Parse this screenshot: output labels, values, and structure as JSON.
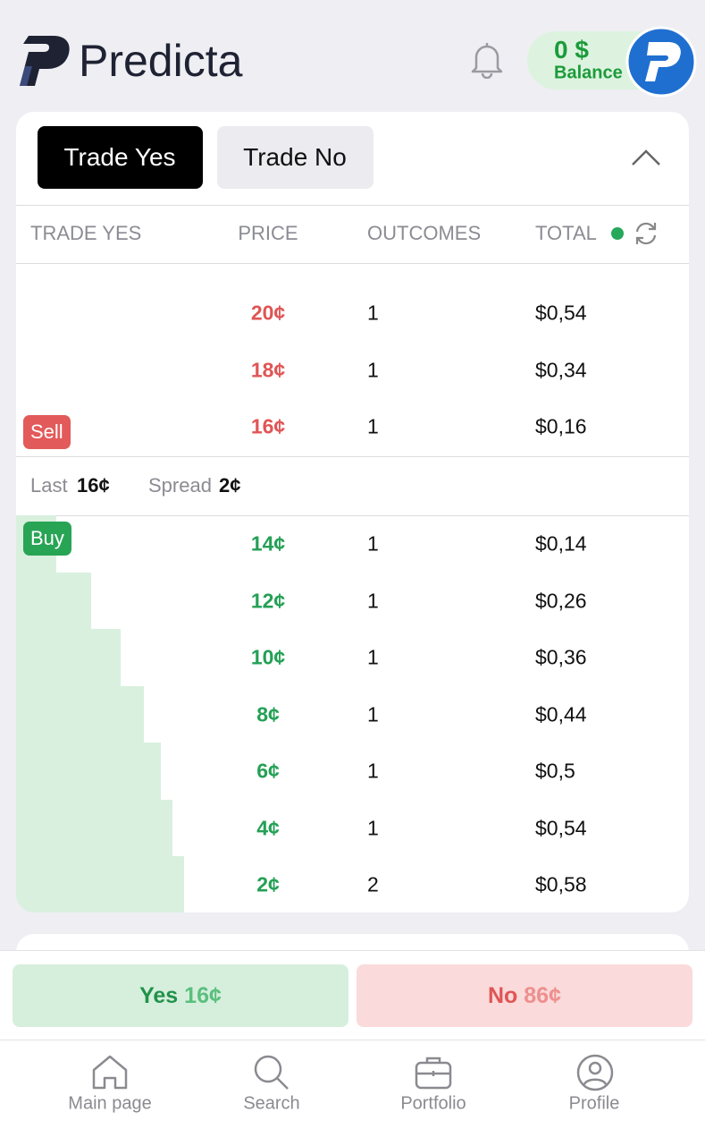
{
  "header": {
    "logo": "Predicta",
    "balance": {
      "amount": "0 $",
      "label": "Balance"
    }
  },
  "tabs": [
    "Trade Yes",
    "Trade No"
  ],
  "columns": [
    "TRADE YES",
    "PRICE",
    "OUTCOMES",
    "TOTAL"
  ],
  "sell": {
    "badge": "Sell",
    "rows": [
      [
        "20¢",
        "1",
        "$0,54"
      ],
      [
        "18¢",
        "1",
        "$0,34"
      ],
      [
        "16¢",
        "1",
        "$0,16"
      ]
    ]
  },
  "summary": {
    "last_label": "Last",
    "last": "16¢",
    "spread_label": "Spread",
    "spread": "2¢"
  },
  "buy": {
    "badge": "Buy",
    "rows": [
      [
        "14¢",
        "1",
        "$0,14"
      ],
      [
        "12¢",
        "1",
        "$0,26"
      ],
      [
        "10¢",
        "1",
        "$0,36"
      ],
      [
        "8¢",
        "1",
        "$0,44"
      ],
      [
        "6¢",
        "1",
        "$0,5"
      ],
      [
        "4¢",
        "1",
        "$0,54"
      ],
      [
        "2¢",
        "2",
        "$0,58"
      ]
    ]
  },
  "actions": {
    "yes": {
      "label": "Yes",
      "price": "16¢"
    },
    "no": {
      "label": "No",
      "price": "86¢"
    }
  },
  "nav": [
    "Main page",
    "Search",
    "Portfolio",
    "Profile"
  ]
}
